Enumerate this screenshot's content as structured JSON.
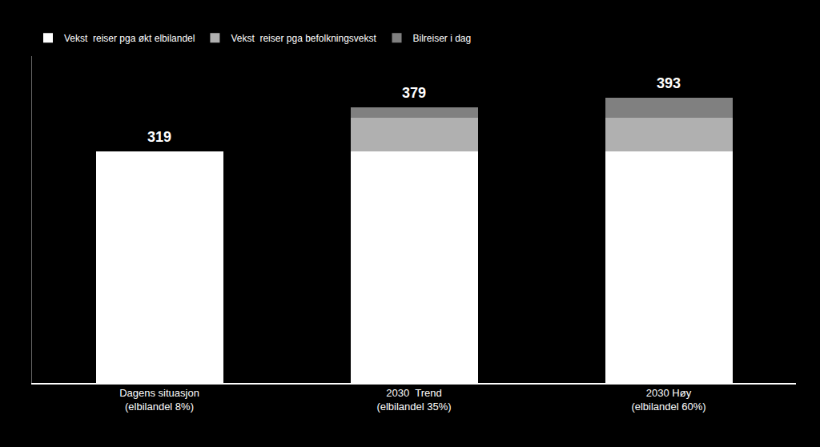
{
  "chart_data": {
    "type": "bar",
    "stacked": true,
    "categories": [
      "Dagens situasjon\n(elbilandel 8%)",
      "2030  Trend\n(elbilandel 35%)",
      "2030 Høy\n(elbilandel 60%)"
    ],
    "series": [
      {
        "name": "Vekst  reiser pga økt elbilandel",
        "color": "#ffffff",
        "values": [
          319,
          319,
          319
        ]
      },
      {
        "name": "Vekst  reiser pga befolkningsvekst",
        "color": "#b0b0b0",
        "values": [
          0,
          46,
          46
        ]
      },
      {
        "name": "Bilreiser i dag",
        "color": "#808080",
        "values": [
          0,
          14,
          28
        ]
      }
    ],
    "totals": [
      319,
      379,
      393
    ],
    "ylim": [
      0,
      450
    ],
    "tick_labels": "x",
    "grid": false,
    "legend": "upper left"
  }
}
